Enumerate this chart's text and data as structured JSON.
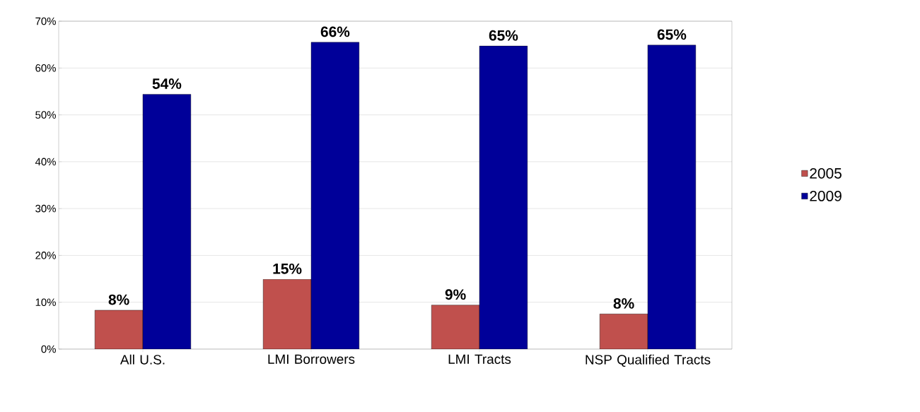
{
  "chart_data": {
    "type": "bar",
    "categories": [
      "All U.S.",
      "LMI Borrowers",
      "LMI Tracts",
      "NSP Qualified Tracts"
    ],
    "series": [
      {
        "name": "2005",
        "color": "#c0504d",
        "values": [
          8.3,
          14.9,
          9.4,
          7.5
        ],
        "value_labels": [
          "8%",
          "15%",
          "9%",
          "8%"
        ]
      },
      {
        "name": "2009",
        "color": "#000099",
        "values": [
          54.4,
          65.5,
          64.7,
          64.9
        ],
        "value_labels": [
          "54%",
          "66%",
          "65%",
          "65%"
        ]
      }
    ],
    "ylim": [
      0,
      70
    ],
    "yticks": [
      {
        "value": 0,
        "label": "0%"
      },
      {
        "value": 10,
        "label": "10%"
      },
      {
        "value": 20,
        "label": "20%"
      },
      {
        "value": 30,
        "label": "30%"
      },
      {
        "value": 40,
        "label": "40%"
      },
      {
        "value": 50,
        "label": "50%"
      },
      {
        "value": 60,
        "label": "60%"
      },
      {
        "value": 70,
        "label": "70%"
      }
    ],
    "grid": "y",
    "legend": "right"
  }
}
